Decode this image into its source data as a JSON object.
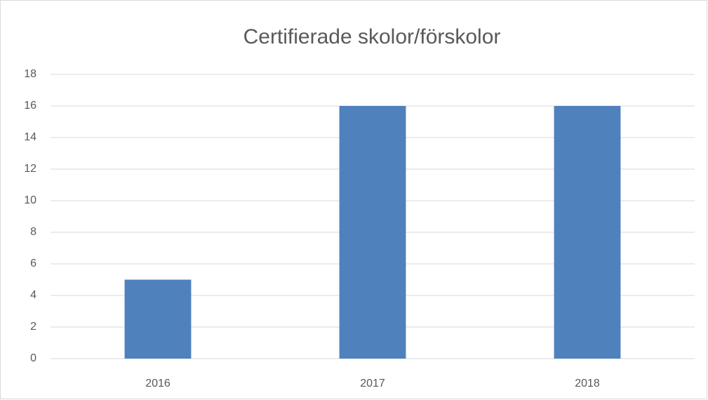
{
  "chart_data": {
    "type": "bar",
    "title": "Certifierade skolor/förskolor",
    "categories": [
      "2016",
      "2017",
      "2018"
    ],
    "values": [
      5,
      16,
      16
    ],
    "color": "#4f81bd",
    "ylim": [
      0,
      18
    ],
    "yticks": [
      0,
      2,
      4,
      6,
      8,
      10,
      12,
      14,
      16,
      18
    ],
    "grid": true
  }
}
